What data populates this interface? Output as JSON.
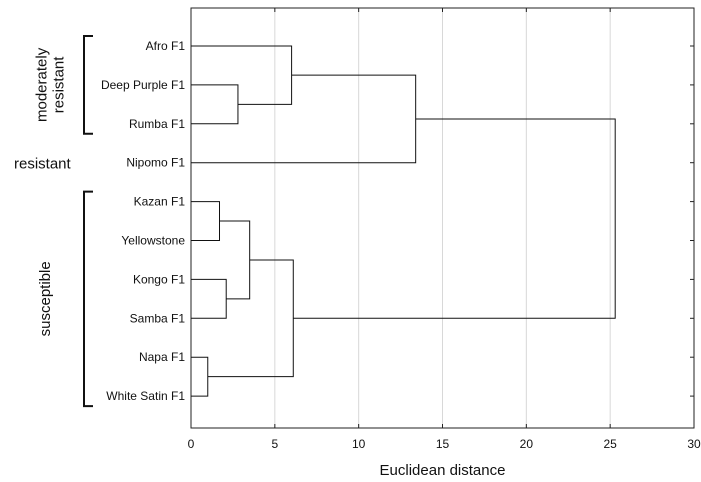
{
  "chart_data": {
    "type": "dendrogram",
    "xlabel": "Euclidean distance",
    "xlim": [
      0,
      30
    ],
    "xticks": [
      0,
      5,
      10,
      15,
      20,
      25,
      30
    ],
    "grid": "vertical",
    "leaves": [
      "Afro F1",
      "Deep Purple F1",
      "Rumba F1",
      "Nipomo F1",
      "Kazan F1",
      "Yellowstone",
      "Kongo F1",
      "Samba F1",
      "Napa F1",
      "White Satin F1"
    ],
    "merges": [
      {
        "a": "Napa F1",
        "b": "White Satin F1",
        "height": 1.0
      },
      {
        "a": "Kazan F1",
        "b": "Yellowstone",
        "height": 1.7
      },
      {
        "a": "Kongo F1",
        "b": "Samba F1",
        "height": 2.1
      },
      {
        "a": "Deep Purple F1",
        "b": "Rumba F1",
        "height": 2.8
      },
      {
        "a": "Kazan F1 + Yellowstone",
        "b": "Kongo F1 + Samba F1",
        "height": 3.5
      },
      {
        "a": "Afro F1",
        "b": "Deep Purple F1 + Rumba F1",
        "height": 6.0
      },
      {
        "a": "Kazan–Samba cluster",
        "b": "Napa–White Satin cluster",
        "height": 6.1
      },
      {
        "a": "Afro–Rumba cluster",
        "b": "Nipomo F1",
        "height": 13.4
      },
      {
        "a": "Afro–Nipomo cluster",
        "b": "Kazan–White Satin cluster",
        "height": 25.3
      }
    ],
    "groups": [
      {
        "lines": [
          "moderately",
          "resistant"
        ],
        "members": [
          "Afro F1",
          "Deep Purple F1",
          "Rumba F1"
        ],
        "bracket": true
      },
      {
        "lines": [
          "resistant"
        ],
        "members": [
          "Nipomo F1"
        ],
        "bracket": false
      },
      {
        "lines": [
          "susceptible"
        ],
        "members": [
          "Kazan F1",
          "Yellowstone",
          "Kongo F1",
          "Samba F1",
          "Napa F1",
          "White Satin F1"
        ],
        "bracket": true
      }
    ]
  }
}
